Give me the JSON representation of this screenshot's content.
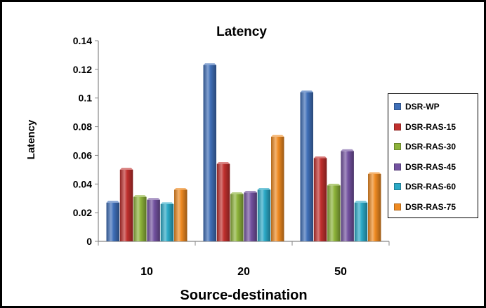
{
  "chart_data": {
    "type": "bar",
    "title": "Latency",
    "xlabel": "Source-destination",
    "ylabel": "Latency",
    "categories": [
      "10",
      "20",
      "50"
    ],
    "ylim": [
      0,
      0.14
    ],
    "yticks": [
      "0",
      "0.02",
      "0.04",
      "0.06",
      "0.08",
      "0.1",
      "0.12",
      "0.14"
    ],
    "grid": false,
    "legend_position": "right",
    "series": [
      {
        "name": "DSR-WP",
        "color": "#3F6FB8",
        "values": [
          0.027,
          0.123,
          0.104
        ]
      },
      {
        "name": "DSR-RAS-15",
        "color": "#C0302E",
        "values": [
          0.05,
          0.054,
          0.058
        ]
      },
      {
        "name": "DSR-RAS-30",
        "color": "#8DB33A",
        "values": [
          0.031,
          0.033,
          0.039
        ]
      },
      {
        "name": "DSR-RAS-45",
        "color": "#7352A0",
        "values": [
          0.029,
          0.034,
          0.063
        ]
      },
      {
        "name": "DSR-RAS-60",
        "color": "#2BA9C6",
        "values": [
          0.026,
          0.036,
          0.027
        ]
      },
      {
        "name": "DSR-RAS-75",
        "color": "#EE8A22",
        "values": [
          0.036,
          0.073,
          0.047
        ]
      }
    ]
  }
}
